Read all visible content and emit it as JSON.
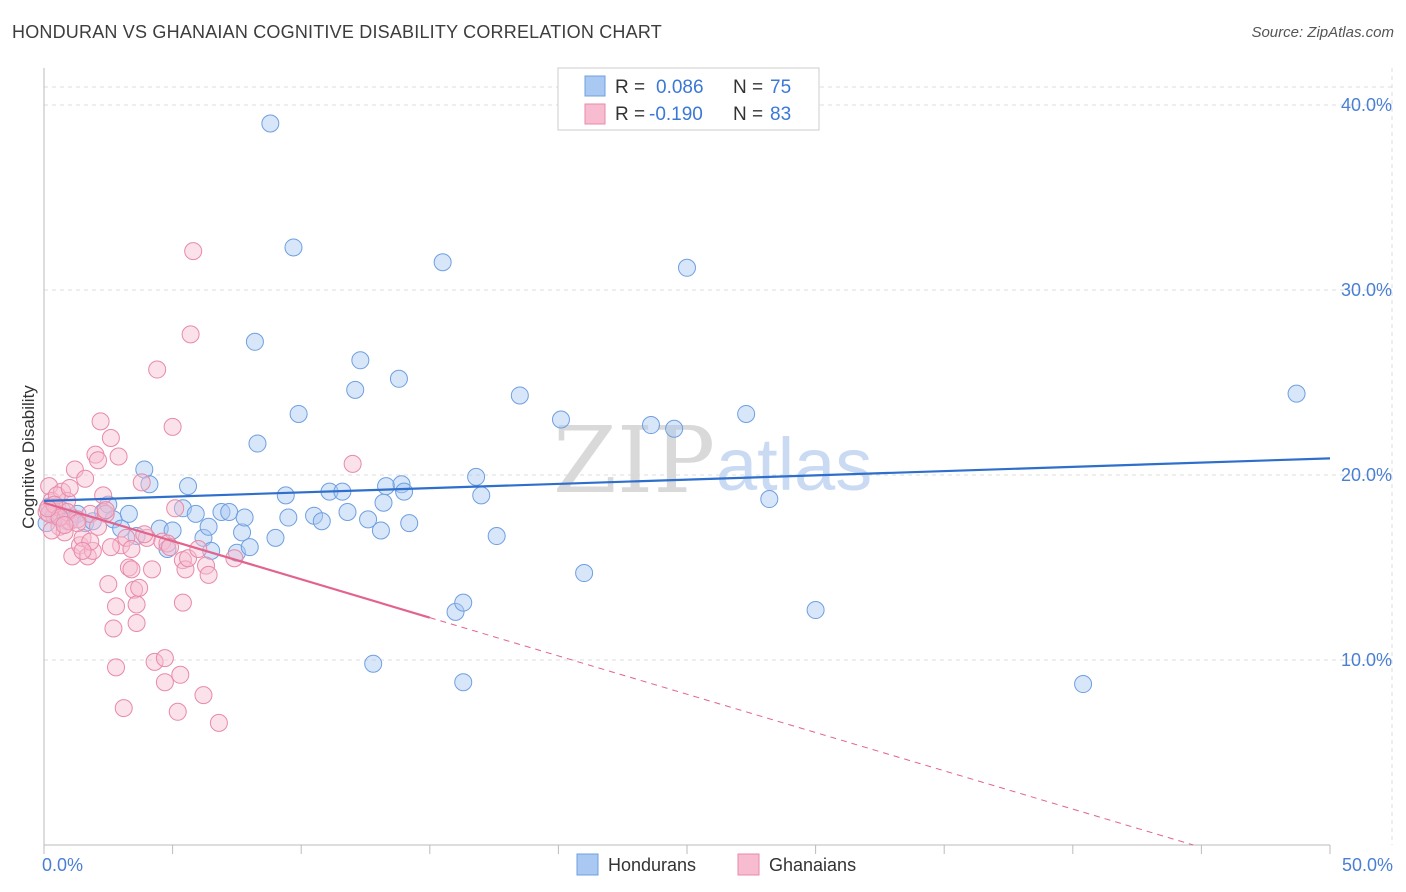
{
  "title": "HONDURAN VS GHANAIAN COGNITIVE DISABILITY CORRELATION CHART",
  "source": "Source: ZipAtlas.com",
  "watermark": {
    "zip": "ZIP",
    "atlas": "atlas"
  },
  "legend": {
    "rows": [
      {
        "r_label": "R =",
        "r_value": "0.086",
        "n_label": "N =",
        "n_value": "75",
        "color": "#a9c8f2",
        "stroke": "#6f9fe0"
      },
      {
        "r_label": "R =",
        "r_value": "-0.190",
        "n_label": "N =",
        "n_value": "83",
        "color": "#f7bcd0",
        "stroke": "#e88aa8"
      }
    ]
  },
  "chart_data": {
    "type": "scatter",
    "title": "HONDURAN VS GHANAIAN COGNITIVE DISABILITY CORRELATION CHART",
    "xlabel": "",
    "ylabel": "Cognitive Disability",
    "xlim": [
      0,
      50
    ],
    "ylim": [
      0,
      42
    ],
    "x_tick_labels": [
      {
        "value": 0,
        "label": "0.0%"
      },
      {
        "value": 50,
        "label": "50.0%"
      }
    ],
    "y_ticks": [
      {
        "value": 10,
        "label": "10.0%"
      },
      {
        "value": 20,
        "label": "20.0%"
      },
      {
        "value": 30,
        "label": "30.0%"
      },
      {
        "value": 40,
        "label": "40.0%"
      }
    ],
    "grid": true,
    "legend_position": "top-center",
    "series": [
      {
        "name": "Hondurans",
        "color": "#6f9fe0",
        "fill": "#a9c8f2",
        "line_color": "#2f6fcc",
        "trend": {
          "x": [
            0,
            50
          ],
          "y": [
            18.6,
            20.9
          ],
          "dashed_from": null
        },
        "points": [
          [
            0.2,
            18.3
          ],
          [
            0.4,
            18.0
          ],
          [
            0.5,
            17.8
          ],
          [
            0.7,
            18.1
          ],
          [
            0.9,
            17.5
          ],
          [
            1.1,
            17.7
          ],
          [
            1.3,
            17.9
          ],
          [
            1.6,
            17.4
          ],
          [
            1.9,
            17.5
          ],
          [
            2.3,
            18.0
          ],
          [
            2.5,
            18.4
          ],
          [
            2.7,
            17.6
          ],
          [
            3.0,
            17.1
          ],
          [
            3.3,
            17.9
          ],
          [
            3.6,
            16.7
          ],
          [
            3.9,
            20.3
          ],
          [
            4.1,
            19.5
          ],
          [
            4.5,
            17.1
          ],
          [
            4.8,
            16.0
          ],
          [
            5.0,
            17.0
          ],
          [
            5.4,
            18.2
          ],
          [
            5.6,
            19.4
          ],
          [
            5.9,
            17.9
          ],
          [
            6.2,
            16.6
          ],
          [
            6.4,
            17.2
          ],
          [
            6.5,
            15.9
          ],
          [
            6.9,
            18.0
          ],
          [
            7.2,
            18.0
          ],
          [
            7.5,
            15.8
          ],
          [
            7.7,
            16.9
          ],
          [
            7.8,
            17.7
          ],
          [
            8.0,
            16.1
          ],
          [
            8.2,
            27.2
          ],
          [
            8.3,
            21.7
          ],
          [
            8.8,
            39.0
          ],
          [
            9.0,
            16.6
          ],
          [
            9.4,
            18.9
          ],
          [
            9.5,
            17.7
          ],
          [
            9.7,
            32.3
          ],
          [
            9.9,
            23.3
          ],
          [
            10.5,
            17.8
          ],
          [
            10.8,
            17.5
          ],
          [
            11.1,
            19.1
          ],
          [
            11.6,
            19.1
          ],
          [
            11.8,
            18.0
          ],
          [
            12.1,
            24.6
          ],
          [
            12.3,
            26.2
          ],
          [
            12.6,
            17.6
          ],
          [
            12.8,
            9.8
          ],
          [
            13.1,
            17.0
          ],
          [
            13.2,
            18.5
          ],
          [
            13.3,
            19.4
          ],
          [
            13.8,
            25.2
          ],
          [
            13.9,
            19.5
          ],
          [
            14.0,
            19.1
          ],
          [
            14.2,
            17.4
          ],
          [
            15.5,
            31.5
          ],
          [
            16.0,
            12.6
          ],
          [
            16.3,
            13.1
          ],
          [
            16.3,
            8.8
          ],
          [
            16.8,
            19.9
          ],
          [
            17.0,
            18.9
          ],
          [
            17.6,
            16.7
          ],
          [
            18.5,
            24.3
          ],
          [
            20.1,
            23.0
          ],
          [
            21.0,
            14.7
          ],
          [
            23.6,
            22.7
          ],
          [
            24.5,
            22.5
          ],
          [
            25.0,
            31.2
          ],
          [
            27.3,
            23.3
          ],
          [
            28.2,
            18.7
          ],
          [
            30.0,
            12.7
          ],
          [
            40.4,
            8.7
          ],
          [
            48.7,
            24.4
          ],
          [
            0.1,
            17.4
          ]
        ]
      },
      {
        "name": "Ghanaians",
        "color": "#e88aa8",
        "fill": "#f7bcd0",
        "line_color": "#e2638c",
        "trend": {
          "x": [
            0,
            50
          ],
          "y": [
            18.5,
            -2.2
          ],
          "solid_until": 15
        },
        "points": [
          [
            0.1,
            18.0
          ],
          [
            0.2,
            19.4
          ],
          [
            0.3,
            18.6
          ],
          [
            0.4,
            17.8
          ],
          [
            0.5,
            18.3
          ],
          [
            0.6,
            17.2
          ],
          [
            0.7,
            19.1
          ],
          [
            0.8,
            16.9
          ],
          [
            0.9,
            18.6
          ],
          [
            1.0,
            17.5
          ],
          [
            1.1,
            15.6
          ],
          [
            1.2,
            20.3
          ],
          [
            1.3,
            17.6
          ],
          [
            1.4,
            16.2
          ],
          [
            1.5,
            16.6
          ],
          [
            1.6,
            19.8
          ],
          [
            1.7,
            15.6
          ],
          [
            1.8,
            17.9
          ],
          [
            1.9,
            15.9
          ],
          [
            2.0,
            21.1
          ],
          [
            2.1,
            20.8
          ],
          [
            2.2,
            22.9
          ],
          [
            2.3,
            18.9
          ],
          [
            2.4,
            17.9
          ],
          [
            2.5,
            14.1
          ],
          [
            2.6,
            22.0
          ],
          [
            2.7,
            11.7
          ],
          [
            2.8,
            9.6
          ],
          [
            2.8,
            12.9
          ],
          [
            2.9,
            21.0
          ],
          [
            3.0,
            16.2
          ],
          [
            3.1,
            7.4
          ],
          [
            3.2,
            16.6
          ],
          [
            3.3,
            15.0
          ],
          [
            3.4,
            14.9
          ],
          [
            3.5,
            13.8
          ],
          [
            3.6,
            12.0
          ],
          [
            3.6,
            13.0
          ],
          [
            3.7,
            13.9
          ],
          [
            3.8,
            19.6
          ],
          [
            4.0,
            16.6
          ],
          [
            4.2,
            14.9
          ],
          [
            4.3,
            9.9
          ],
          [
            4.4,
            25.7
          ],
          [
            4.6,
            16.4
          ],
          [
            4.7,
            10.1
          ],
          [
            4.7,
            8.8
          ],
          [
            4.8,
            16.3
          ],
          [
            5.0,
            22.6
          ],
          [
            5.1,
            18.2
          ],
          [
            5.2,
            7.2
          ],
          [
            5.3,
            9.2
          ],
          [
            5.4,
            13.1
          ],
          [
            5.4,
            15.4
          ],
          [
            5.5,
            14.9
          ],
          [
            5.6,
            15.5
          ],
          [
            5.7,
            27.6
          ],
          [
            5.8,
            32.1
          ],
          [
            6.0,
            16.0
          ],
          [
            6.2,
            8.1
          ],
          [
            6.3,
            15.1
          ],
          [
            6.4,
            14.6
          ],
          [
            6.8,
            6.6
          ],
          [
            7.4,
            15.5
          ],
          [
            12.0,
            20.6
          ],
          [
            0.3,
            17.0
          ],
          [
            0.5,
            18.9
          ],
          [
            0.9,
            18.0
          ],
          [
            1.3,
            17.4
          ],
          [
            1.8,
            16.4
          ],
          [
            2.1,
            17.2
          ],
          [
            2.6,
            16.1
          ],
          [
            3.4,
            16.0
          ],
          [
            0.2,
            17.9
          ],
          [
            0.4,
            18.4
          ],
          [
            0.6,
            17.7
          ],
          [
            0.8,
            17.3
          ],
          [
            1.0,
            19.3
          ],
          [
            1.5,
            15.9
          ],
          [
            2.4,
            18.1
          ],
          [
            3.9,
            16.8
          ],
          [
            4.9,
            16.1
          ],
          [
            0.15,
            18.2
          ]
        ]
      }
    ]
  },
  "bottom_legend": [
    {
      "label": "Hondurans",
      "fill": "#a9c8f2",
      "stroke": "#6f9fe0"
    },
    {
      "label": "Ghanaians",
      "fill": "#f7bcd0",
      "stroke": "#e88aa8"
    }
  ]
}
